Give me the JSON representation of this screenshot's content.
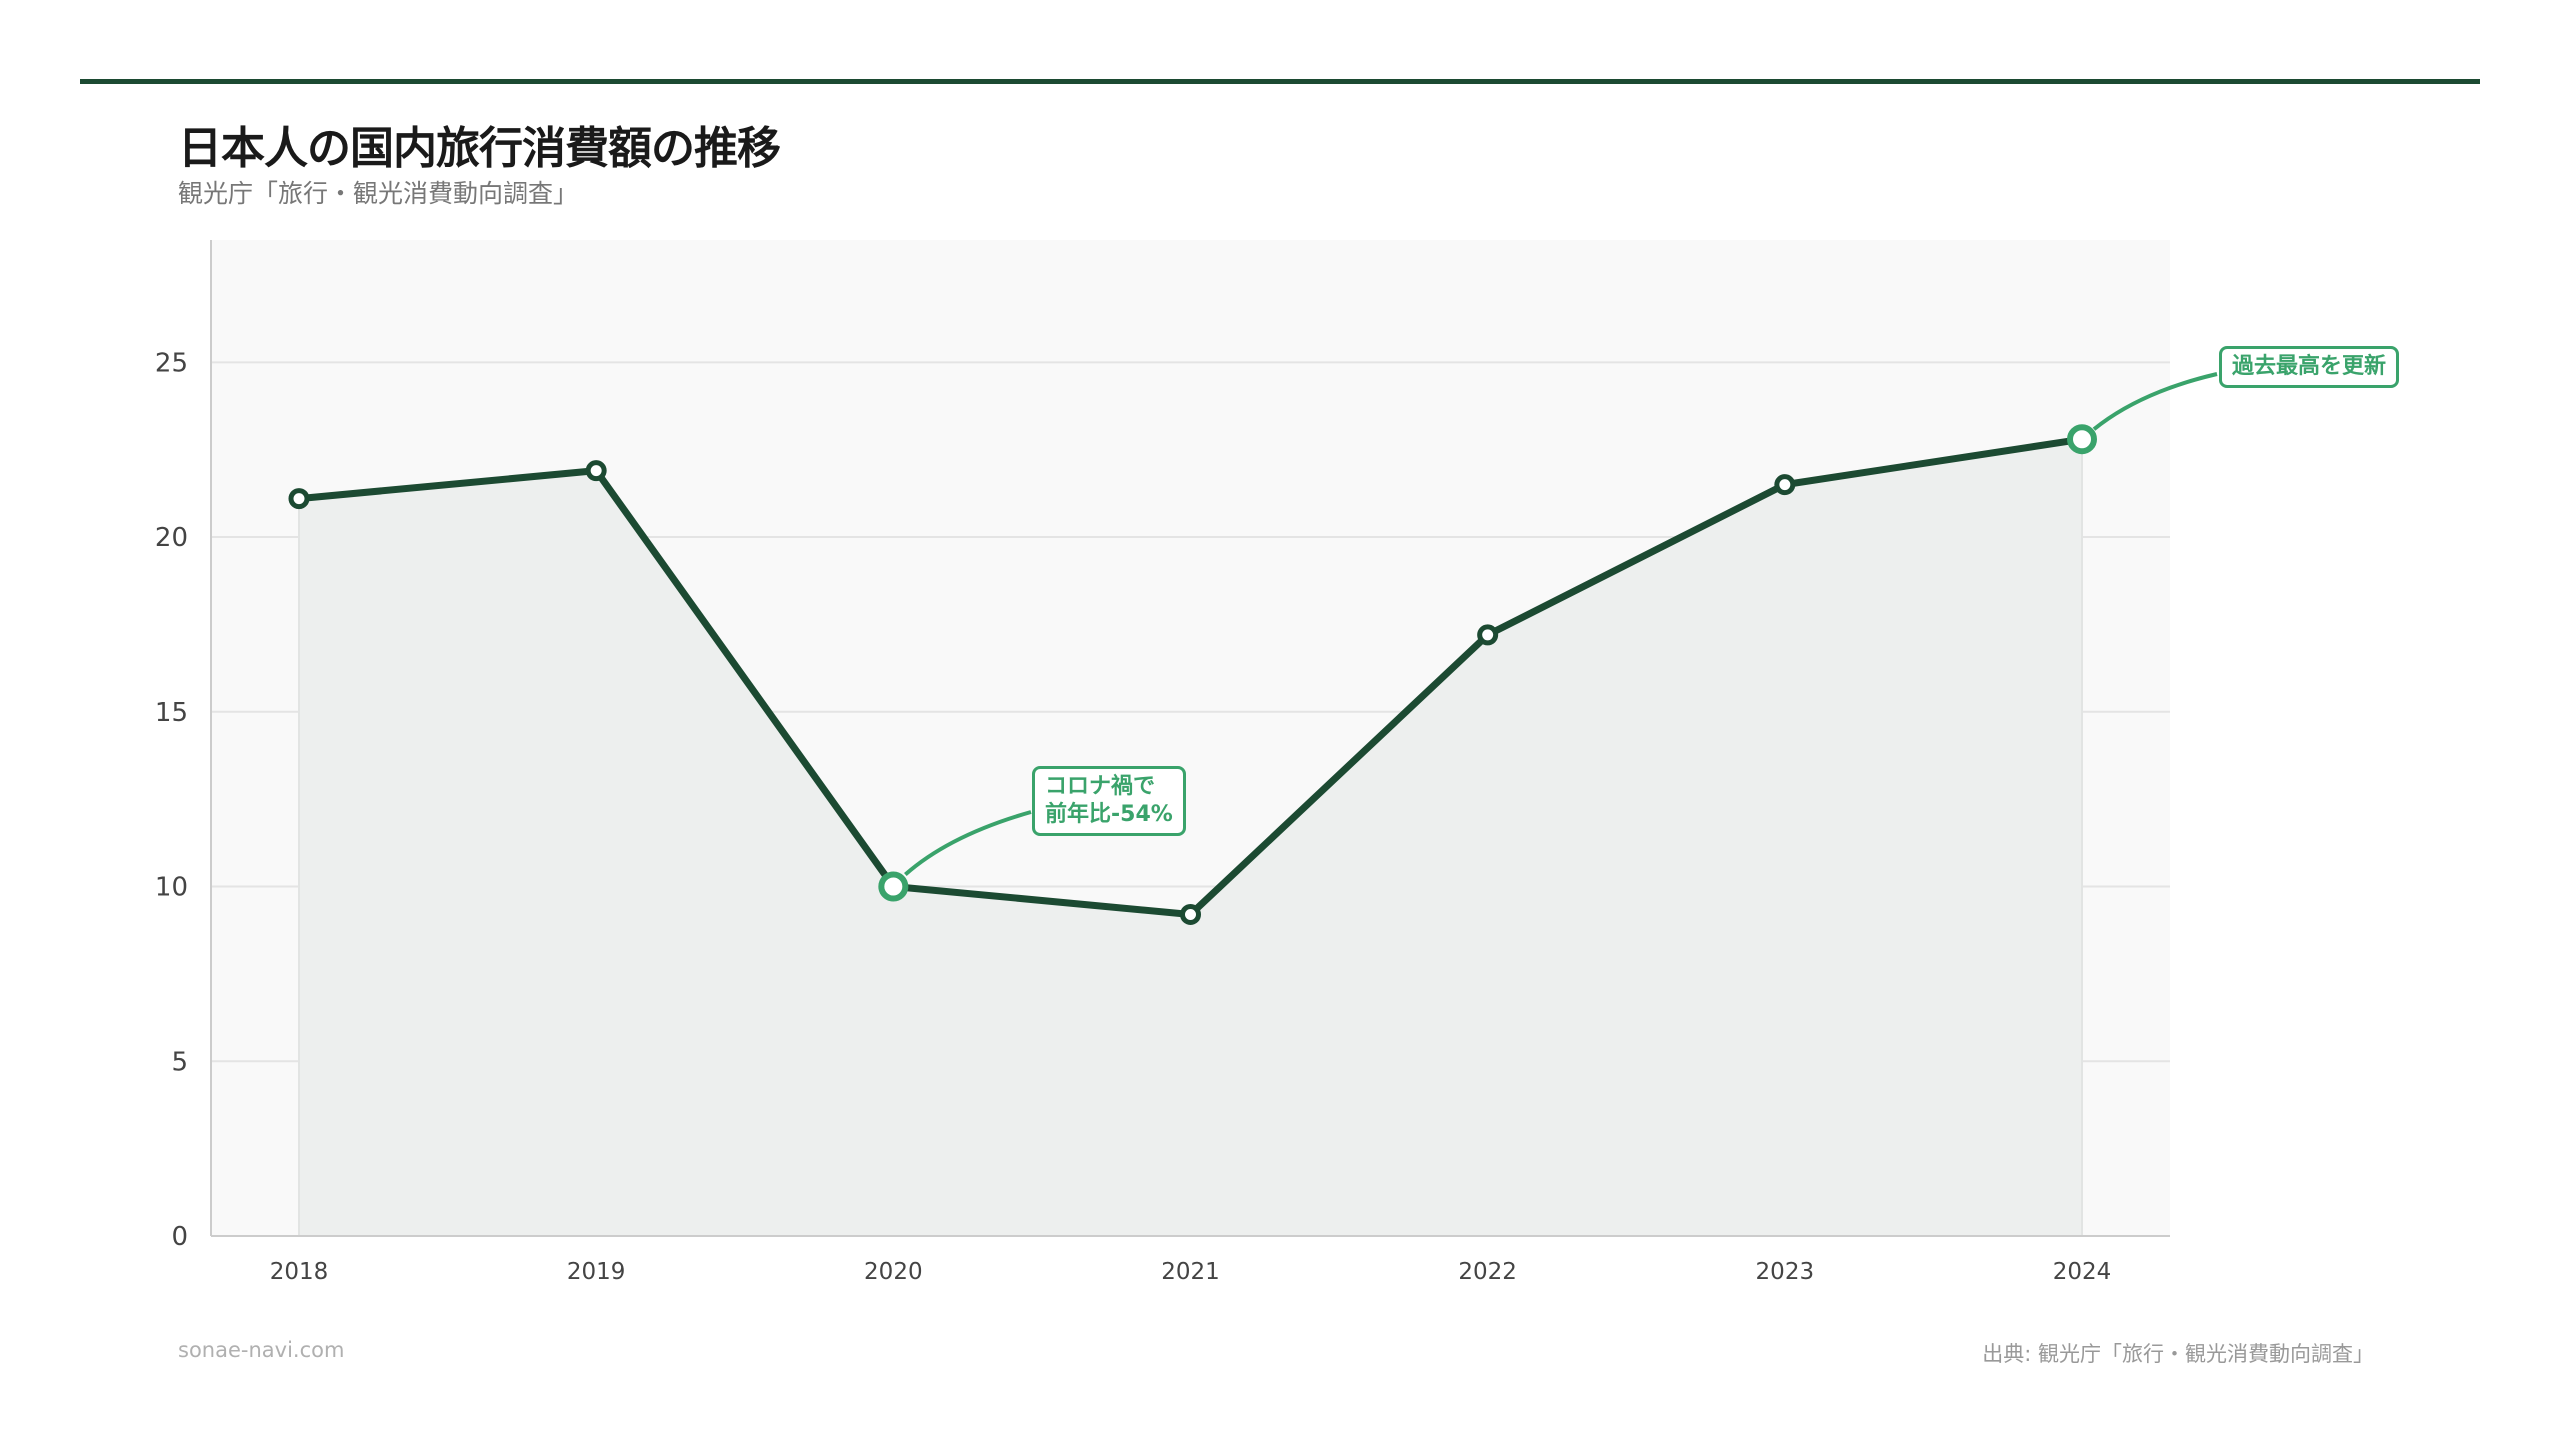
{
  "header": {
    "title": "日本人の国内旅行消費額の推移",
    "subtitle": "観光庁「旅行・観光消費動向調査」"
  },
  "footer": {
    "site": "sonae-navi.com",
    "source": "出典: 観光庁「旅行・観光消費動向調査」"
  },
  "colors": {
    "accent_bar": "#1c4a32",
    "line": "#1c4a32",
    "highlight": "#3aa36b",
    "area_fill": "#edefee",
    "plot_background": "#f9f9f9"
  },
  "chart_data": {
    "type": "area",
    "title": "日本人の国内旅行消費額の推移",
    "subtitle": "観光庁「旅行・観光消費動向調査」",
    "xlabel": "",
    "ylabel": "",
    "categories": [
      "2018",
      "2019",
      "2020",
      "2021",
      "2022",
      "2023",
      "2024"
    ],
    "values": [
      21.1,
      21.9,
      10.0,
      9.2,
      17.2,
      21.5,
      22.8
    ],
    "ylim": [
      0,
      28.5
    ],
    "yticks": [
      0,
      5,
      10,
      15,
      20,
      25
    ],
    "grid": "horizontal",
    "legend": "none",
    "highlighted": [
      "2020",
      "2024"
    ],
    "annotations": [
      {
        "category": "2020",
        "text": "コロナ禍で\n前年比-54%"
      },
      {
        "category": "2024",
        "text": "過去最高を更新"
      }
    ]
  }
}
